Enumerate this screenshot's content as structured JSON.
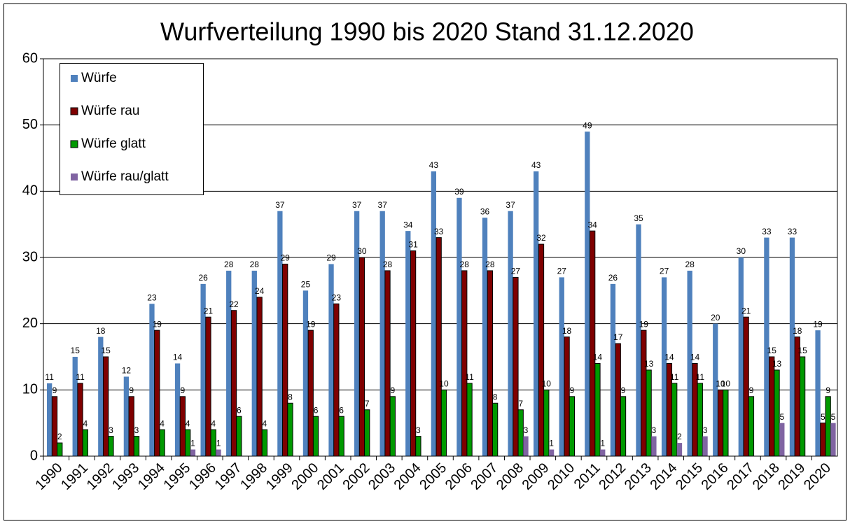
{
  "chart_data": {
    "type": "bar",
    "title": "Wurfverteilung 1990 bis 2020 Stand 31.12.2020",
    "categories": [
      "1990",
      "1991",
      "1992",
      "1993",
      "1994",
      "1995",
      "1996",
      "1997",
      "1998",
      "1999",
      "2000",
      "2001",
      "2002",
      "2003",
      "2004",
      "2005",
      "2006",
      "2007",
      "2008",
      "2009",
      "2010",
      "2011",
      "2012",
      "2013",
      "2014",
      "2015",
      "2016",
      "2017",
      "2018",
      "2019",
      "2020"
    ],
    "series": [
      {
        "name": "Würfe",
        "color": "#4f81bd",
        "values": [
          11,
          15,
          18,
          12,
          23,
          14,
          26,
          28,
          28,
          37,
          25,
          29,
          37,
          37,
          34,
          43,
          39,
          36,
          37,
          43,
          27,
          49,
          26,
          35,
          27,
          28,
          20,
          30,
          33,
          33,
          19
        ]
      },
      {
        "name": "Würfe rau",
        "color": "#7f0000",
        "values": [
          9,
          11,
          15,
          9,
          19,
          9,
          21,
          22,
          24,
          29,
          19,
          23,
          30,
          28,
          31,
          33,
          28,
          28,
          27,
          32,
          18,
          34,
          17,
          19,
          14,
          14,
          10,
          21,
          15,
          18,
          5
        ]
      },
      {
        "name": "Würfe glatt",
        "color": "#009900",
        "values": [
          2,
          4,
          3,
          3,
          4,
          4,
          4,
          6,
          4,
          8,
          6,
          6,
          7,
          9,
          3,
          10,
          11,
          8,
          7,
          10,
          9,
          14,
          9,
          13,
          11,
          11,
          10,
          9,
          13,
          15,
          9
        ]
      },
      {
        "name": "Würfe rau/glatt",
        "color": "#8064a2",
        "values": [
          null,
          null,
          null,
          null,
          null,
          1,
          1,
          null,
          null,
          null,
          null,
          null,
          null,
          null,
          null,
          null,
          null,
          null,
          3,
          1,
          null,
          1,
          null,
          3,
          2,
          3,
          null,
          null,
          5,
          null,
          5
        ]
      }
    ],
    "ylim": [
      0,
      60
    ],
    "yticks": [
      0,
      10,
      20,
      30,
      40,
      50,
      60
    ],
    "grid": true,
    "legend": "top-left"
  }
}
